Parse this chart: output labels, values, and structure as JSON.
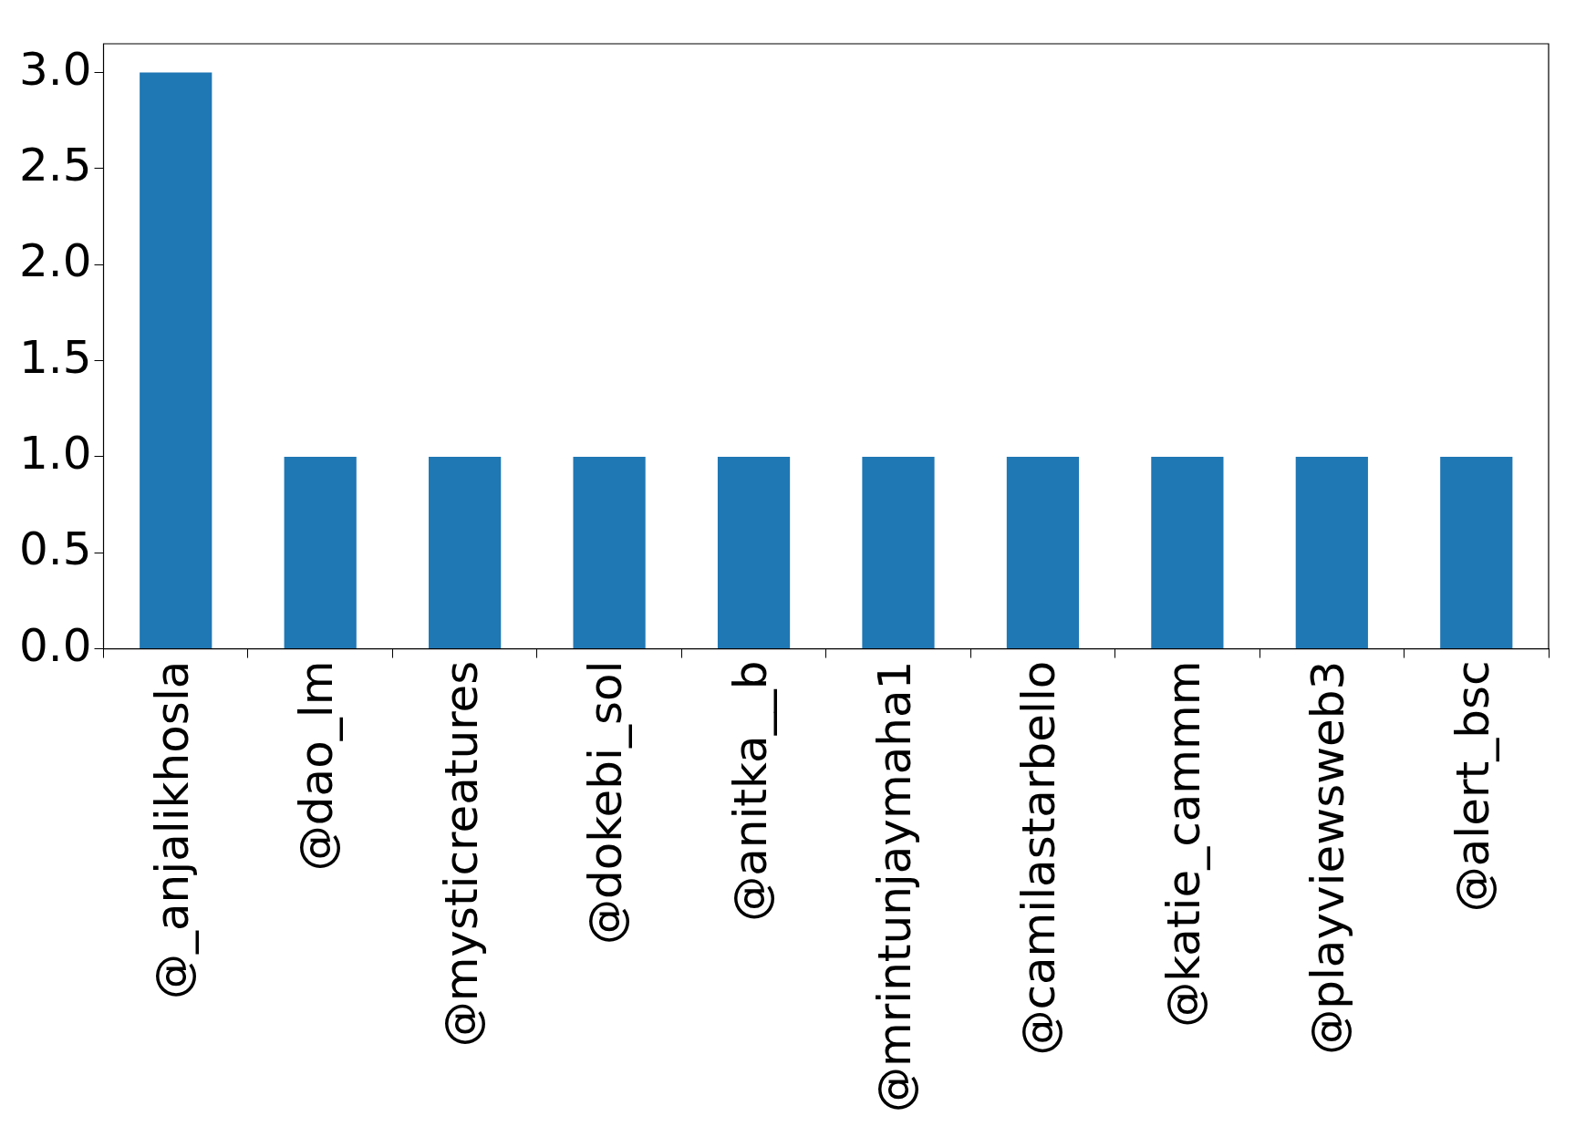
{
  "chart_data": {
    "type": "bar",
    "categories": [
      "@_anjalikhosla",
      "@dao_lm",
      "@mysticreatures",
      "@dokebi_sol",
      "@anitka__b",
      "@mrintunjaymaha1",
      "@camilastarbello",
      "@katie_cammm",
      "@playviewsweb3",
      "@alert_bsc"
    ],
    "values": [
      3,
      1,
      1,
      1,
      1,
      1,
      1,
      1,
      1,
      1
    ],
    "color": "#1f77b4",
    "ylim": [
      0,
      3.15
    ],
    "yticks": [
      {
        "value": 0,
        "label": "0.0"
      },
      {
        "value": 0.5,
        "label": "0.5"
      },
      {
        "value": 1,
        "label": "1.0"
      },
      {
        "value": 1.5,
        "label": "1.5"
      },
      {
        "value": 2,
        "label": "2.0"
      },
      {
        "value": 2.5,
        "label": "2.5"
      },
      {
        "value": 3,
        "label": "3.0"
      }
    ]
  }
}
